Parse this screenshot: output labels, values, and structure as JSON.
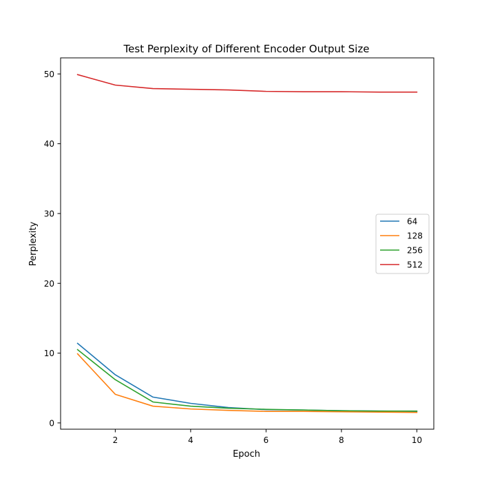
{
  "chart_data": {
    "type": "line",
    "title": "Test Perplexity of Different Encoder Output Size",
    "xlabel": "Epoch",
    "ylabel": "Perplexity",
    "x": [
      1,
      2,
      3,
      4,
      5,
      6,
      7,
      8,
      9,
      10
    ],
    "xlim": [
      0.55,
      10.45
    ],
    "ylim": [
      -0.9,
      52.3
    ],
    "xticks": [
      2,
      4,
      6,
      8,
      10
    ],
    "yticks": [
      0,
      10,
      20,
      30,
      40,
      50
    ],
    "grid": false,
    "legend_position": "center-right",
    "series": [
      {
        "name": "64",
        "color": "#1f77b4",
        "values": [
          11.4,
          6.9,
          3.7,
          2.8,
          2.2,
          1.9,
          1.85,
          1.75,
          1.7,
          1.65
        ]
      },
      {
        "name": "128",
        "color": "#ff7f0e",
        "values": [
          9.9,
          4.1,
          2.4,
          2.0,
          1.8,
          1.65,
          1.65,
          1.6,
          1.55,
          1.5
        ]
      },
      {
        "name": "256",
        "color": "#2ca02c",
        "values": [
          10.5,
          6.2,
          3.0,
          2.4,
          2.1,
          1.95,
          1.85,
          1.75,
          1.7,
          1.7
        ]
      },
      {
        "name": "512",
        "color": "#d62728",
        "values": [
          49.9,
          48.4,
          47.9,
          47.8,
          47.7,
          47.5,
          47.45,
          47.45,
          47.4,
          47.4
        ]
      }
    ]
  }
}
